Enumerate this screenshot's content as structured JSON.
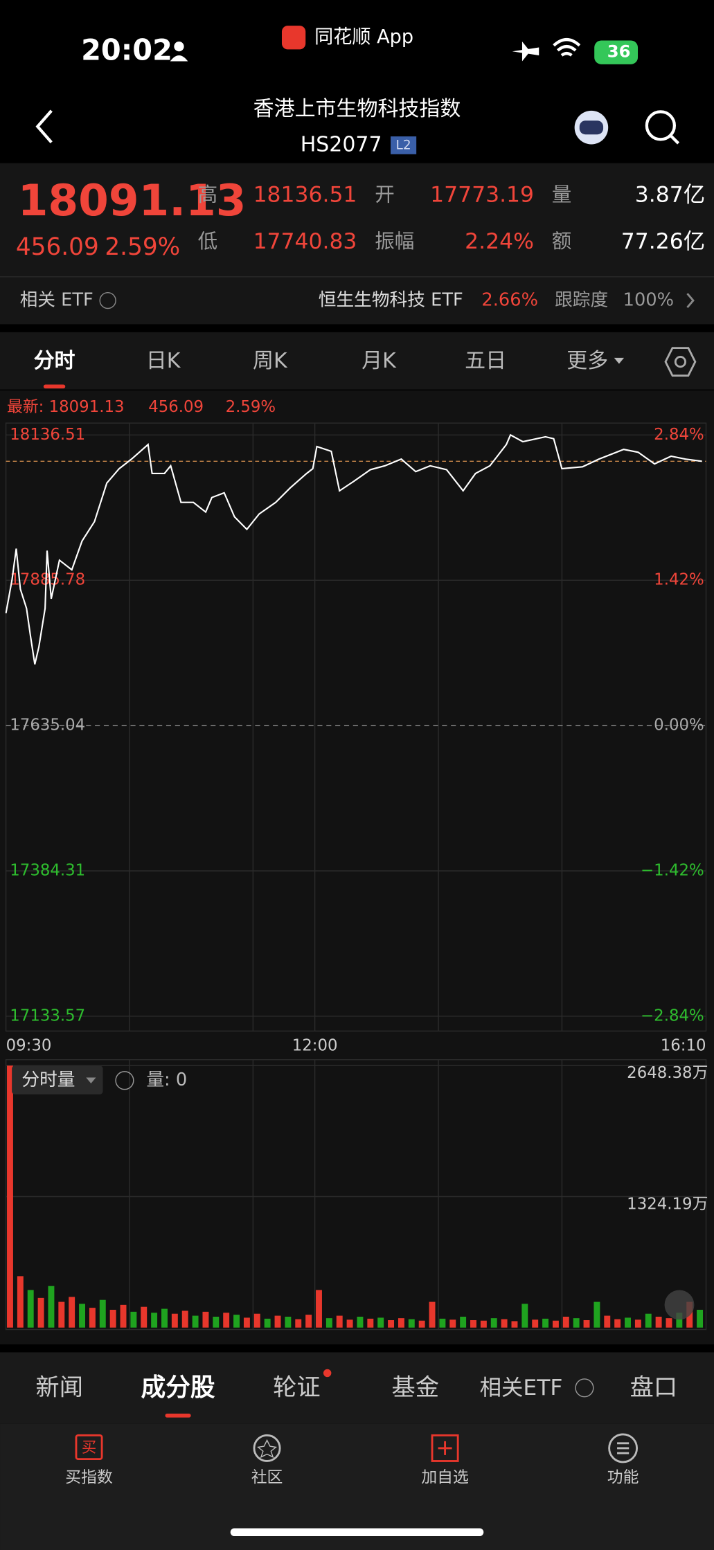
{
  "status_bar": {
    "time": "20:02",
    "app": "同花顺 App",
    "battery": "36"
  },
  "header": {
    "title": "香港上市生物科技指数",
    "code": "HS2077",
    "badge": "L2"
  },
  "quote": {
    "price": "18091.13",
    "change": "456.09",
    "change_pct": "2.59%",
    "stats": [
      {
        "label": "高",
        "value": "18136.51"
      },
      {
        "label": "开",
        "value": "17773.19"
      },
      {
        "label": "量",
        "value": "3.87亿"
      },
      {
        "label": "低",
        "value": "17740.83"
      },
      {
        "label": "振幅",
        "value": "2.24%"
      },
      {
        "label": "额",
        "value": "77.26亿"
      }
    ]
  },
  "etf": {
    "label": "相关 ETF",
    "name": "恒生生物科技 ETF",
    "pct": "2.66%",
    "track_label": "跟踪度",
    "track": "100%"
  },
  "period_tabs": [
    "分时",
    "日K",
    "周K",
    "月K",
    "五日",
    "更多"
  ],
  "latest": [
    "最新: 18091.13",
    "456.09",
    "2.59%"
  ],
  "chart_data": [
    {
      "type": "line",
      "color": "#ffffff",
      "latest_line_color": "#c8874a",
      "x": [
        0,
        3,
        5,
        7,
        10,
        12,
        14,
        16,
        19,
        20,
        22,
        26,
        32,
        37,
        43,
        49,
        55,
        61,
        69,
        71,
        77,
        80,
        85,
        91,
        97,
        100,
        106,
        111,
        117,
        123,
        131,
        138,
        146,
        149,
        151,
        158,
        162,
        169,
        177,
        184,
        192,
        199,
        206,
        214,
        222,
        228,
        235,
        243,
        245,
        251,
        262,
        266,
        270,
        280,
        288,
        300,
        307,
        315,
        323,
        330,
        338
      ],
      "values": [
        17828.9,
        17887.1,
        17940.3,
        17870.5,
        17837.3,
        17787.4,
        17740.83,
        17770.8,
        17837.3,
        17937.0,
        17853.9,
        17920.4,
        17903.8,
        17953.6,
        17986.9,
        18053.4,
        18078.3,
        18094.9,
        18119.9,
        18070.0,
        18070.0,
        18083.3,
        18020.1,
        18020.1,
        18003.5,
        18028.5,
        18036.8,
        17995.2,
        17973.6,
        18000.2,
        18020.1,
        18045.1,
        18070.0,
        18078.3,
        18116.6,
        18108.2,
        18040.1,
        18056.7,
        18076.7,
        18083.3,
        18094.9,
        18073.3,
        18083.3,
        18076.7,
        18040.1,
        18070.0,
        18083.3,
        18119.9,
        18136.51,
        18124.9,
        18133.2,
        18130.0,
        18078.3,
        18081.6,
        18094.9,
        18111.6,
        18106.6,
        18086.6,
        18099.9,
        18094.9,
        18091.13
      ],
      "xlim": [
        0,
        340
      ],
      "xticks": [
        {
          "value": 0,
          "label": "09:30"
        },
        {
          "value": 150,
          "label": "12:00"
        },
        {
          "value": 340,
          "label": "16:10"
        }
      ],
      "xgrid": [
        60,
        120,
        150,
        210,
        270
      ],
      "ylim": [
        17133.57,
        18136.51
      ],
      "yticks": [
        18136.51,
        17885.78,
        17635.04,
        17384.31,
        17133.57
      ],
      "y2lim": [
        -2.84,
        2.84
      ],
      "y2ticks": [
        {
          "value": 2.84,
          "label": "2.84%"
        },
        {
          "value": 1.42,
          "label": "1.42%"
        },
        {
          "value": 0,
          "label": "0.00%"
        },
        {
          "value": -1.42,
          "label": "−1.42%"
        },
        {
          "value": -2.84,
          "label": "−2.84%"
        }
      ]
    },
    {
      "type": "bar",
      "title": "分时量",
      "annotation": "量: 0",
      "x": [
        0,
        5,
        10,
        15,
        20,
        25,
        30,
        35,
        40,
        45,
        50,
        55,
        60,
        65,
        70,
        75,
        80,
        85,
        90,
        95,
        100,
        105,
        110,
        115,
        120,
        125,
        130,
        135,
        140,
        145,
        150,
        155,
        160,
        165,
        170,
        175,
        180,
        185,
        190,
        195,
        200,
        205,
        210,
        215,
        220,
        225,
        230,
        235,
        240,
        245,
        250,
        255,
        260,
        265,
        270,
        275,
        280,
        285,
        290,
        295,
        300,
        305,
        310,
        315,
        320,
        325,
        330,
        335
      ],
      "values": [
        2648.38,
        520,
        380,
        300,
        420,
        260,
        310,
        240,
        200,
        280,
        180,
        230,
        160,
        210,
        150,
        190,
        140,
        170,
        120,
        160,
        110,
        150,
        130,
        100,
        140,
        90,
        120,
        110,
        85,
        130,
        380,
        95,
        120,
        80,
        110,
        90,
        100,
        75,
        95,
        85,
        70,
        260,
        90,
        80,
        110,
        75,
        70,
        95,
        85,
        65,
        240,
        80,
        90,
        70,
        110,
        95,
        75,
        260,
        120,
        85,
        100,
        80,
        140,
        110,
        95,
        150,
        260,
        180
      ],
      "colors": [
        "#e8372c",
        "#e8372c",
        "#1fa31f",
        "#e8372c",
        "#1fa31f",
        "#e8372c",
        "#e8372c",
        "#1fa31f",
        "#e8372c",
        "#1fa31f",
        "#e8372c",
        "#e8372c",
        "#1fa31f",
        "#e8372c",
        "#1fa31f",
        "#1fa31f",
        "#e8372c",
        "#e8372c",
        "#1fa31f",
        "#e8372c",
        "#1fa31f",
        "#e8372c",
        "#1fa31f",
        "#e8372c",
        "#e8372c",
        "#1fa31f",
        "#e8372c",
        "#1fa31f",
        "#e8372c",
        "#e8372c",
        "#e8372c",
        "#1fa31f",
        "#e8372c",
        "#e8372c",
        "#1fa31f",
        "#e8372c",
        "#1fa31f",
        "#e8372c",
        "#e8372c",
        "#1fa31f",
        "#e8372c",
        "#e8372c",
        "#1fa31f",
        "#e8372c",
        "#1fa31f",
        "#e8372c",
        "#e8372c",
        "#1fa31f",
        "#e8372c",
        "#e8372c",
        "#1fa31f",
        "#e8372c",
        "#1fa31f",
        "#e8372c",
        "#e8372c",
        "#1fa31f",
        "#e8372c",
        "#1fa31f",
        "#e8372c",
        "#e8372c",
        "#1fa31f",
        "#e8372c",
        "#1fa31f",
        "#e8372c",
        "#e8372c",
        "#1fa31f",
        "#e8372c",
        "#1fa31f"
      ],
      "xlim": [
        0,
        340
      ],
      "ylim": [
        0,
        2648.38
      ],
      "yticks": [
        {
          "value": 2648.38,
          "label": "2648.38万"
        },
        {
          "value": 1324.19,
          "label": "1324.19万"
        }
      ]
    }
  ],
  "bottom_tabs": [
    "新闻",
    "成分股",
    "轮证",
    "基金",
    "相关ETF",
    "盘口"
  ],
  "nav": {
    "buy_icon": "买",
    "items": [
      "买指数",
      "社区",
      "加自选",
      "功能"
    ]
  }
}
